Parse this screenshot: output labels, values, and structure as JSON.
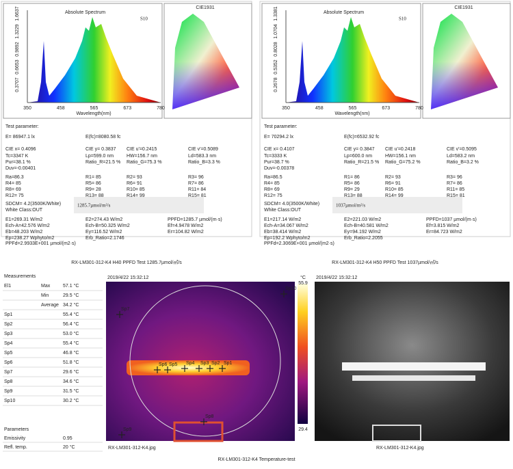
{
  "reports": [
    {
      "title": "Absolute Spectrum",
      "label": "S10",
      "yticks": [
        "0.3707",
        "0.6653",
        "0.9892",
        "1.3229",
        "1.6637"
      ],
      "xticks": [
        "350",
        "458",
        "565",
        "673",
        "780"
      ],
      "xlabel": "Wavelength(nm)",
      "cie_title": "CIE1931",
      "heading": "Test parameter:",
      "rows": [
        [
          "E=  86947.1 lx",
          "E(fc)=8080.58 fc"
        ],
        [
          "CIE x= 0.4096",
          "CIE y= 0.3837",
          "CIE u'=0.2415",
          "CIE v'=0.5089"
        ],
        [
          "Tc=3347 K",
          "Lp=599.0 nm",
          "HW=156.7 nm",
          "Ld=583.3 nm"
        ],
        [
          "Pur=38.1 %",
          "Ratio_R=21.5 %",
          "Ratio_G=75.3 %",
          "Ratio_B=3.3 %"
        ],
        [
          "Duv=-0.00401"
        ],
        [
          "Ra=86.3",
          "R1= 85",
          "R2= 93",
          "R3= 96"
        ],
        [
          "R4= 85",
          "R5= 86",
          "R6= 91",
          "R7= 86"
        ],
        [
          "R8= 69",
          "R9= 28",
          "R10= 85",
          "R11= 84"
        ],
        [
          "R12= 75",
          "R13= 88",
          "R14= 99",
          "R15= 81"
        ],
        [
          "SDCM= 4.2(3500K/White)"
        ],
        [
          "White Class:OUT"
        ],
        [
          "E1=269.31 W/m2",
          "E2=274.43 W/m2",
          "PPFD=1285.7 µmol/(m·s)"
        ],
        [
          "Ech-A=42.576 W/m2",
          "Ech-B=50.325 W/m2",
          "Ef=4.9478 W/m2"
        ],
        [
          "Eb=48.203 W/m2",
          "Ey=116.52 W/m2",
          "Er=104.82 W/m2"
        ],
        [
          "Ep=238.27 Wphyto/m2",
          "Erb_Ratio=2.1746"
        ],
        [
          "PPFd=2.9933E+001 µmol/(m2·s)"
        ]
      ],
      "highlight": "1285.7µmol/m²/s",
      "caption": "RX-LM301-312-K4 H40 PPFD Test 1285.7µmol/㎡/s"
    },
    {
      "title": "Absolute Spectrum",
      "label": "S10",
      "yticks": [
        "0.2678",
        "0.5352",
        "0.8028",
        "1.0704",
        "1.3381"
      ],
      "xticks": [
        "350",
        "458",
        "565",
        "673",
        "780"
      ],
      "xlabel": "Wavelength(nm)",
      "cie_title": "CIE1931",
      "heading": "Test parameter:",
      "rows": [
        [
          "E=  70294.2 lx",
          "E(fc)=6532.92 fc"
        ],
        [
          "CIE x= 0.4107",
          "CIE y= 0.3847",
          "CIE u'=0.2418",
          "CIE v'=0.5095"
        ],
        [
          "Tc=3333 K",
          "Lp=600.0 nm",
          "HW=156.1 nm",
          "Ld=583.2 nm"
        ],
        [
          "Pur=38.7 %",
          "Ratio_R=21.5 %",
          "Ratio_G=75.2 %",
          "Ratio_B=3.2 %"
        ],
        [
          "Duv=-0.00378"
        ],
        [
          "Ra=86.5",
          "R1= 86",
          "R2= 93",
          "R3= 96"
        ],
        [
          "R4= 85",
          "R5= 86",
          "R6= 91",
          "R7= 86"
        ],
        [
          "R8= 69",
          "R9= 29",
          "R10= 85",
          "R11= 85"
        ],
        [
          "R12= 75",
          "R13= 88",
          "R14= 99",
          "R15= 81"
        ],
        [
          "SDCM= 4.0(3500K/White)"
        ],
        [
          "White Class:OUT"
        ],
        [
          "E1=217.14 W/m2",
          "E2=221.03 W/m2",
          "PPFD=1037 µmol/(m·s)"
        ],
        [
          "Ech-A=34.067 W/m2",
          "Ech-B=40.581 W/m2",
          "Ef=3.815 W/m2"
        ],
        [
          "Eb=38.414 W/m2",
          "Ey=94.192 W/m2",
          "Er=84.723 W/m2"
        ],
        [
          "Ep=192.2 Wphyto/m2",
          "Erb_Ratio=2.2055"
        ],
        [
          "PPFd=2.3069E+001 µmol/(m2·s)"
        ]
      ],
      "highlight": "1037µmol/m²/s",
      "caption": "RX-LM301-312-K4 H50 PPFD Test 1037µmol/㎡/s"
    }
  ],
  "measurements": {
    "heading": "Measurements",
    "rows": [
      [
        "El1",
        "Max",
        "57.1 °C"
      ],
      [
        null,
        "Min",
        "29.5 °C"
      ],
      [
        null,
        "Average",
        "34.2 °C"
      ],
      [
        "Sp1",
        null,
        "55.4 °C"
      ],
      [
        "Sp2",
        null,
        "56.4 °C"
      ],
      [
        "Sp3",
        null,
        "53.0 °C"
      ],
      [
        "Sp4",
        null,
        "55.4 °C"
      ],
      [
        "Sp5",
        null,
        "46.8 °C"
      ],
      [
        "Sp6",
        null,
        "51.8 °C"
      ],
      [
        "Sp7",
        null,
        "29.6 °C"
      ],
      [
        "Sp8",
        null,
        "34.6 °C"
      ],
      [
        "Sp9",
        null,
        "31.5 °C"
      ],
      [
        "Sp10",
        null,
        "30.2 °C"
      ]
    ],
    "param_heading": "Parameters",
    "params": [
      [
        "Emissivity",
        "0.95"
      ],
      [
        "Refl. temp.",
        "20 °C"
      ]
    ]
  },
  "thermal": {
    "time": "2019/4/22 15:32:12",
    "unit": "°C",
    "max": "55.9",
    "min": "29.4",
    "spots": [
      "Sp1",
      "Sp2",
      "Sp3",
      "Sp4",
      "Sp5",
      "Sp6",
      "Sp7",
      "Sp8",
      "Sp9",
      "Sp10"
    ],
    "file": "RX-LM301-312-K4.jpg"
  },
  "photo": {
    "time": "2019/4/22 15:32:12",
    "file": "RX-LM301-312-K4.jpg"
  },
  "footer": "RX-LM301-312-K4 Temperature-test"
}
